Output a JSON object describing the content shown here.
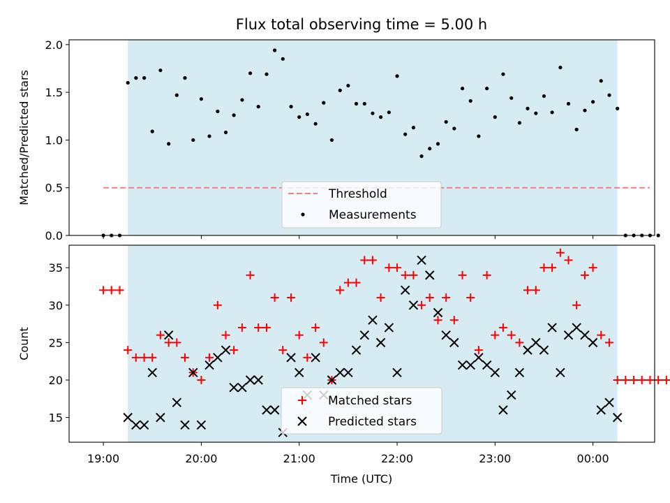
{
  "chart_data": [
    {
      "type": "scatter",
      "title": "Flux total observing time = 5.00 h",
      "ylabel": "Matched/Predicted stars",
      "xlabel": "",
      "xlim_hours": [
        18.65,
        24.63
      ],
      "ylim": [
        0,
        2.05
      ],
      "yticks": [
        0.0,
        0.5,
        1.0,
        1.5,
        2.0
      ],
      "ytick_labels": [
        "0.0",
        "0.5",
        "1.0",
        "1.5",
        "2.0"
      ],
      "shaded_span": [
        19.25,
        24.25
      ],
      "shade_color": "#add8e6",
      "threshold": {
        "name": "Threshold",
        "value": 0.5,
        "x": [
          19.0,
          24.58
        ],
        "color": "#f08080"
      },
      "legend": {
        "loc": "lower center",
        "entries": [
          "Threshold",
          "Measurements"
        ]
      },
      "series": [
        {
          "name": "Measurements",
          "marker": "dot",
          "color": "#000000",
          "points": [
            [
              19.0,
              0
            ],
            [
              19.083,
              0
            ],
            [
              19.167,
              0
            ],
            [
              19.25,
              1.6
            ],
            [
              19.333,
              1.65
            ],
            [
              19.417,
              1.65
            ],
            [
              19.5,
              1.09
            ],
            [
              19.583,
              1.73
            ],
            [
              19.667,
              0.96
            ],
            [
              19.75,
              1.47
            ],
            [
              19.833,
              1.65
            ],
            [
              19.917,
              1.0
            ],
            [
              20.0,
              1.43
            ],
            [
              20.083,
              1.04
            ],
            [
              20.167,
              1.3
            ],
            [
              20.25,
              1.08
            ],
            [
              20.333,
              1.26
            ],
            [
              20.417,
              1.42
            ],
            [
              20.5,
              1.7
            ],
            [
              20.583,
              1.35
            ],
            [
              20.667,
              1.69
            ],
            [
              20.75,
              1.94
            ],
            [
              20.833,
              1.85
            ],
            [
              20.917,
              1.35
            ],
            [
              21.0,
              1.24
            ],
            [
              21.083,
              1.27
            ],
            [
              21.167,
              1.17
            ],
            [
              21.25,
              1.39
            ],
            [
              21.333,
              1.0
            ],
            [
              21.417,
              1.52
            ],
            [
              21.5,
              1.57
            ],
            [
              21.583,
              1.38
            ],
            [
              21.667,
              1.38
            ],
            [
              21.75,
              1.28
            ],
            [
              21.833,
              1.24
            ],
            [
              21.917,
              1.29
            ],
            [
              22.0,
              1.67
            ],
            [
              22.083,
              1.06
            ],
            [
              22.167,
              1.13
            ],
            [
              22.25,
              0.83
            ],
            [
              22.333,
              0.91
            ],
            [
              22.417,
              0.96
            ],
            [
              22.5,
              1.19
            ],
            [
              22.583,
              1.12
            ],
            [
              22.667,
              1.54
            ],
            [
              22.75,
              1.41
            ],
            [
              22.833,
              1.04
            ],
            [
              22.917,
              1.54
            ],
            [
              23.0,
              1.24
            ],
            [
              23.083,
              1.69
            ],
            [
              23.167,
              1.44
            ],
            [
              23.25,
              1.18
            ],
            [
              23.333,
              1.33
            ],
            [
              23.417,
              1.28
            ],
            [
              23.5,
              1.46
            ],
            [
              23.583,
              1.29
            ],
            [
              23.667,
              1.76
            ],
            [
              23.75,
              1.38
            ],
            [
              23.833,
              1.11
            ],
            [
              23.917,
              1.31
            ],
            [
              24.0,
              1.4
            ],
            [
              24.083,
              1.62
            ],
            [
              24.167,
              1.47
            ],
            [
              24.25,
              1.33
            ],
            [
              24.333,
              0
            ],
            [
              24.417,
              0
            ],
            [
              24.5,
              0
            ],
            [
              24.583,
              0
            ],
            [
              24.667,
              0
            ]
          ]
        }
      ]
    },
    {
      "type": "scatter",
      "title": "",
      "ylabel": "Count",
      "xlabel": "Time (UTC)",
      "xlim_hours": [
        18.65,
        24.63
      ],
      "ylim": [
        11.7,
        38.0
      ],
      "yticks": [
        15,
        20,
        25,
        30,
        35
      ],
      "ytick_labels": [
        "15",
        "20",
        "25",
        "30",
        "35"
      ],
      "xticks_hours": [
        19,
        20,
        21,
        22,
        23,
        24
      ],
      "xtick_labels": [
        "19:00",
        "20:00",
        "21:00",
        "22:00",
        "23:00",
        "00:00"
      ],
      "shaded_span": [
        19.25,
        24.25
      ],
      "shade_color": "#add8e6",
      "legend": {
        "loc": "lower center",
        "entries": [
          "Matched stars",
          "Predicted stars"
        ]
      },
      "series": [
        {
          "name": "Matched stars",
          "marker": "plus",
          "color": "#ff0000",
          "points": [
            [
              19.0,
              32
            ],
            [
              19.083,
              32
            ],
            [
              19.167,
              32
            ],
            [
              19.25,
              24
            ],
            [
              19.333,
              23
            ],
            [
              19.417,
              23
            ],
            [
              19.5,
              23
            ],
            [
              19.583,
              26
            ],
            [
              19.667,
              25
            ],
            [
              19.75,
              25
            ],
            [
              19.833,
              23
            ],
            [
              19.917,
              21
            ],
            [
              20.0,
              20
            ],
            [
              20.083,
              23
            ],
            [
              20.167,
              30
            ],
            [
              20.25,
              26
            ],
            [
              20.333,
              24
            ],
            [
              20.417,
              27
            ],
            [
              20.5,
              34
            ],
            [
              20.583,
              27
            ],
            [
              20.667,
              27
            ],
            [
              20.75,
              31
            ],
            [
              20.833,
              24
            ],
            [
              20.917,
              31
            ],
            [
              21.0,
              26
            ],
            [
              21.083,
              23
            ],
            [
              21.167,
              27
            ],
            [
              21.25,
              25
            ],
            [
              21.333,
              20
            ],
            [
              21.417,
              32
            ],
            [
              21.5,
              33
            ],
            [
              21.583,
              33
            ],
            [
              21.667,
              36
            ],
            [
              21.75,
              36
            ],
            [
              21.833,
              31
            ],
            [
              21.917,
              35
            ],
            [
              22.0,
              35
            ],
            [
              22.083,
              34
            ],
            [
              22.167,
              34
            ],
            [
              22.25,
              30
            ],
            [
              22.333,
              31
            ],
            [
              22.417,
              28
            ],
            [
              22.5,
              31
            ],
            [
              22.583,
              28
            ],
            [
              22.667,
              34
            ],
            [
              22.75,
              31
            ],
            [
              22.833,
              24
            ],
            [
              22.917,
              34
            ],
            [
              23.0,
              26
            ],
            [
              23.083,
              27
            ],
            [
              23.167,
              26
            ],
            [
              23.25,
              25
            ],
            [
              23.333,
              32
            ],
            [
              23.417,
              32
            ],
            [
              23.5,
              35
            ],
            [
              23.583,
              35
            ],
            [
              23.667,
              37
            ],
            [
              23.75,
              36
            ],
            [
              23.833,
              30
            ],
            [
              23.917,
              34
            ],
            [
              24.0,
              35
            ],
            [
              24.083,
              26
            ],
            [
              24.167,
              25
            ],
            [
              24.25,
              20
            ],
            [
              24.333,
              20
            ],
            [
              24.417,
              20
            ],
            [
              24.5,
              20
            ],
            [
              24.583,
              20
            ],
            [
              24.667,
              20
            ],
            [
              24.75,
              20
            ]
          ]
        },
        {
          "name": "Predicted stars",
          "marker": "x",
          "color": "#000000",
          "points": [
            [
              19.25,
              15
            ],
            [
              19.333,
              14
            ],
            [
              19.417,
              14
            ],
            [
              19.5,
              21
            ],
            [
              19.583,
              15
            ],
            [
              19.667,
              26
            ],
            [
              19.75,
              17
            ],
            [
              19.833,
              14
            ],
            [
              19.917,
              21
            ],
            [
              20.0,
              14
            ],
            [
              20.083,
              22
            ],
            [
              20.167,
              23
            ],
            [
              20.25,
              24
            ],
            [
              20.333,
              19
            ],
            [
              20.417,
              19
            ],
            [
              20.5,
              20
            ],
            [
              20.583,
              20
            ],
            [
              20.667,
              16
            ],
            [
              20.75,
              16
            ],
            [
              20.833,
              13
            ],
            [
              20.917,
              23
            ],
            [
              21.0,
              21
            ],
            [
              21.083,
              18
            ],
            [
              21.167,
              23
            ],
            [
              21.25,
              18
            ],
            [
              21.333,
              20
            ],
            [
              21.417,
              21
            ],
            [
              21.5,
              21
            ],
            [
              21.583,
              24
            ],
            [
              21.667,
              26
            ],
            [
              21.75,
              28
            ],
            [
              21.833,
              25
            ],
            [
              21.917,
              27
            ],
            [
              22.0,
              21
            ],
            [
              22.083,
              32
            ],
            [
              22.167,
              30
            ],
            [
              22.25,
              36
            ],
            [
              22.333,
              34
            ],
            [
              22.417,
              29
            ],
            [
              22.5,
              26
            ],
            [
              22.583,
              25
            ],
            [
              22.667,
              22
            ],
            [
              22.75,
              22
            ],
            [
              22.833,
              23
            ],
            [
              22.917,
              22
            ],
            [
              23.0,
              21
            ],
            [
              23.083,
              16
            ],
            [
              23.167,
              18
            ],
            [
              23.25,
              21
            ],
            [
              23.333,
              24
            ],
            [
              23.417,
              25
            ],
            [
              23.5,
              24
            ],
            [
              23.583,
              27
            ],
            [
              23.667,
              21
            ],
            [
              23.75,
              26
            ],
            [
              23.833,
              27
            ],
            [
              23.917,
              26
            ],
            [
              24.0,
              25
            ],
            [
              24.083,
              16
            ],
            [
              24.167,
              17
            ],
            [
              24.25,
              15
            ]
          ]
        }
      ]
    }
  ]
}
